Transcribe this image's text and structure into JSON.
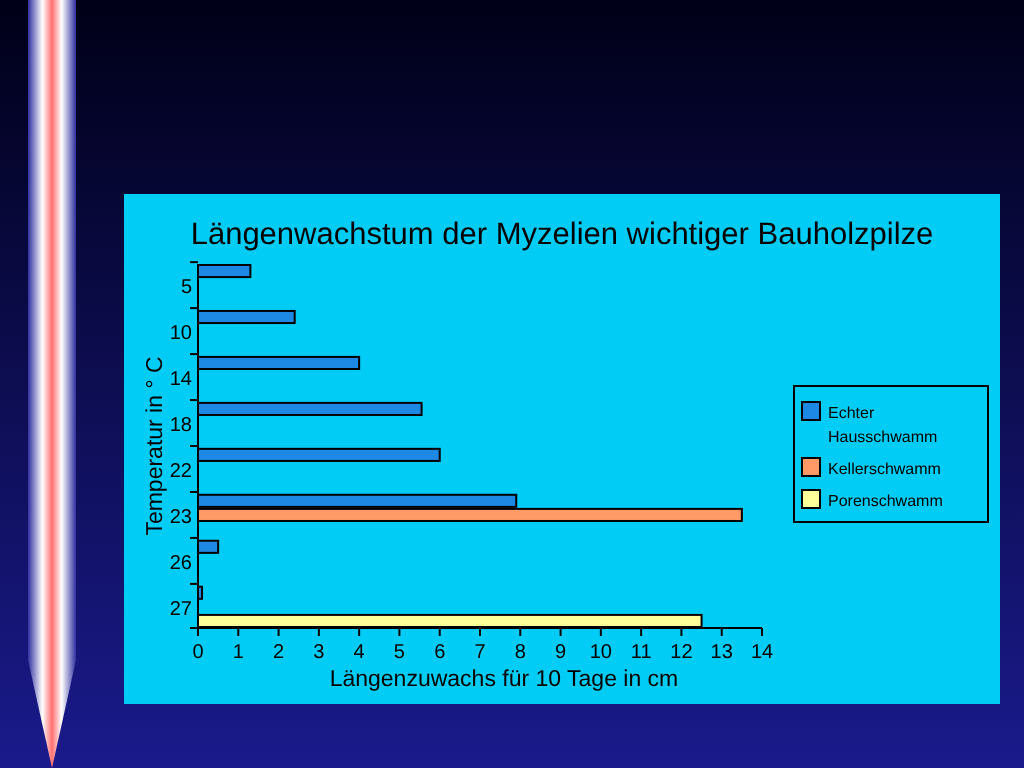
{
  "chart_data": {
    "type": "bar",
    "orientation": "horizontal",
    "title": "Längenwachstum der Myzelien wichtiger Bauholzpilze",
    "xlabel": "Längenzuwachs für 10 Tage in cm",
    "ylabel": "Temperatur in ° C",
    "categories": [
      "5",
      "10",
      "14",
      "18",
      "22",
      "23",
      "26",
      "27"
    ],
    "series": [
      {
        "name": "Echter Hausschwamm",
        "color": "#1e88e5",
        "values": [
          1.3,
          2.4,
          4.0,
          5.55,
          6.0,
          7.9,
          0.5,
          0.1
        ]
      },
      {
        "name": "Kellerschwamm",
        "color": "#ff9966",
        "values": [
          null,
          null,
          null,
          null,
          null,
          13.5,
          null,
          null
        ]
      },
      {
        "name": "Porenschwamm",
        "color": "#ffff99",
        "values": [
          null,
          null,
          null,
          null,
          null,
          null,
          null,
          12.5
        ]
      }
    ],
    "xlim": [
      0,
      14
    ],
    "xticks": [
      0,
      1,
      2,
      3,
      4,
      5,
      6,
      7,
      8,
      9,
      10,
      11,
      12,
      13,
      14
    ],
    "legend": "right",
    "grid": false
  }
}
